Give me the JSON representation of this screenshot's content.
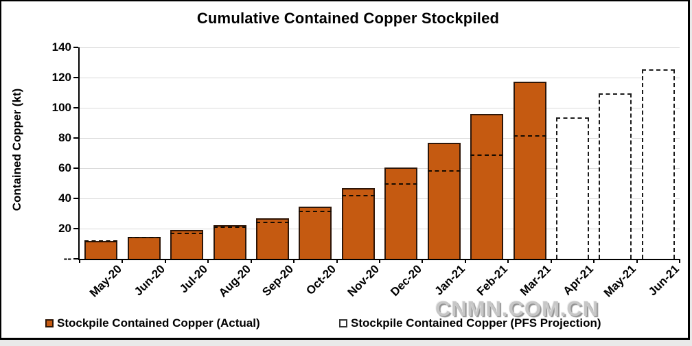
{
  "watermark": "CNMN.COM.CN",
  "colors": {
    "bar_fill": "#C55A11",
    "bar_border": "#2e1608",
    "projection_dash": "#140a00",
    "gridline": "#d9d9d9",
    "axis": "#000000",
    "watermark": "#c7c7c7"
  },
  "chart_data": {
    "type": "bar",
    "title": "Cumulative Contained Copper Stockpiled",
    "xlabel": "",
    "ylabel": "Contained Copper (kt)",
    "ylim": [
      0,
      140
    ],
    "ytick_step": 20,
    "ytick_labels": [
      "--",
      "20",
      "40",
      "60",
      "80",
      "100",
      "120",
      "140"
    ],
    "grid": "horizontal",
    "legend_position": "bottom",
    "categories": [
      "May-20",
      "Jun-20",
      "Jul-20",
      "Aug-20",
      "Sep-20",
      "Oct-20",
      "Nov-20",
      "Dec-20",
      "Jan-21",
      "Feb-21",
      "Mar-21",
      "Apr-21",
      "May-21",
      "Jun-21"
    ],
    "series": [
      {
        "name": "Stockpile Contained Copper (Actual)",
        "style": "solid-bar",
        "color": "#C55A11",
        "values": [
          12,
          14.5,
          19,
          22.5,
          27,
          34.5,
          47,
          60.5,
          77,
          96,
          117.5,
          null,
          null,
          null
        ]
      },
      {
        "name": "Stockpile Contained Copper (PFS Projection)",
        "style": "dashed",
        "values": [
          12,
          14,
          17,
          21,
          24,
          31.5,
          42,
          49.5,
          58,
          68.5,
          81.5,
          93.5,
          109.5,
          125.5
        ]
      }
    ]
  }
}
